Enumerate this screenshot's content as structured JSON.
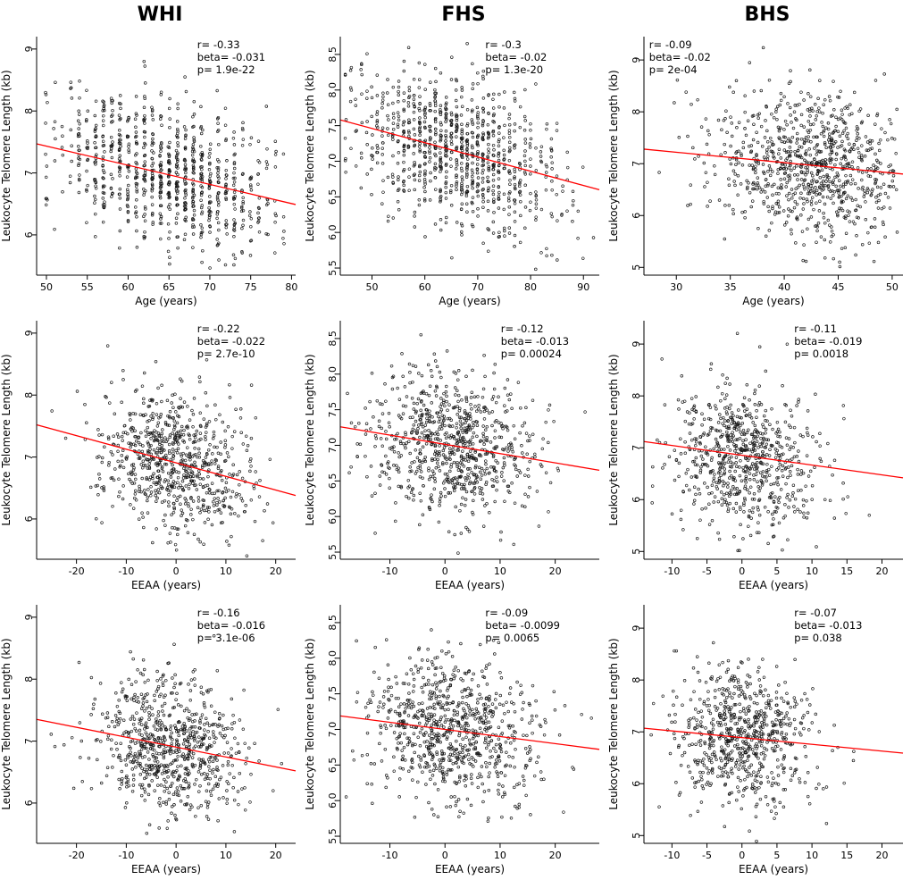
{
  "chart_data": {
    "type": "scatter",
    "columns": [
      "WHI",
      "FHS",
      "BHS"
    ],
    "ylabel": "Leukocyte Telomere Length (kb)",
    "panels": [
      {
        "study": "WHI",
        "xlabel": "Age (years)",
        "xlim": [
          48.8,
          80.5
        ],
        "ylim": [
          5.35,
          9.2
        ],
        "xticks": {
          "vals": [
            50,
            55,
            60,
            65,
            70,
            75,
            80
          ],
          "labels": [
            "50",
            "55",
            "60",
            "65",
            "70",
            "75",
            "80"
          ]
        },
        "yticks": {
          "vals": [
            6,
            7,
            8,
            9
          ],
          "labels": [
            "6",
            "7",
            "8",
            "9"
          ]
        },
        "annotation": {
          "lines": [
            "r= -0.33",
            "beta= -0.031",
            "p= 1.9e-22"
          ],
          "x_frac": 0.62
        },
        "line": {
          "x1": 48.8,
          "y1": 7.47,
          "x2": 80.5,
          "y2": 6.49
        },
        "scatter": {
          "n": 850,
          "seed": 11,
          "x_mean": 64.5,
          "x_sd": 7.2,
          "x_clip": [
            49.5,
            79.5
          ],
          "snap_x": true,
          "y_sd": 0.55
        }
      },
      {
        "study": "FHS",
        "xlabel": "Age (years)",
        "xlim": [
          44,
          93
        ],
        "ylim": [
          5.4,
          8.75
        ],
        "xticks": {
          "vals": [
            50,
            60,
            70,
            80,
            90
          ],
          "labels": [
            "50",
            "60",
            "70",
            "80",
            "90"
          ]
        },
        "yticks": {
          "vals": [
            5.5,
            6.0,
            6.5,
            7.0,
            7.5,
            8.0,
            8.5
          ],
          "labels": [
            "5.5",
            "6.0",
            "6.5",
            "7.0",
            "7.5",
            "8.0",
            "8.5"
          ]
        },
        "annotation": {
          "lines": [
            "r= -0.3",
            "beta= -0.02",
            "p= 1.3e-20"
          ],
          "x_frac": 0.56
        },
        "line": {
          "x1": 44,
          "y1": 7.58,
          "x2": 93,
          "y2": 6.6
        },
        "scatter": {
          "n": 900,
          "seed": 22,
          "x_mean": 66,
          "x_sd": 10,
          "x_clip": [
            45,
            92
          ],
          "snap_x": true,
          "y_sd": 0.5
        }
      },
      {
        "study": "BHS",
        "xlabel": "Age (years)",
        "xlim": [
          27,
          51
        ],
        "ylim": [
          4.85,
          9.45
        ],
        "xticks": {
          "vals": [
            30,
            35,
            40,
            45,
            50
          ],
          "labels": [
            "30",
            "35",
            "40",
            "45",
            "50"
          ]
        },
        "yticks": {
          "vals": [
            5,
            6,
            7,
            8,
            9
          ],
          "labels": [
            "5",
            "6",
            "7",
            "8",
            "9"
          ]
        },
        "annotation": {
          "lines": [
            "r= -0.09",
            "beta= -0.02",
            "p= 2e-04"
          ],
          "x_frac": 0.02
        },
        "line": {
          "x1": 27,
          "y1": 7.28,
          "x2": 51,
          "y2": 6.8
        },
        "scatter": {
          "n": 850,
          "seed": 33,
          "x_mean": 42.5,
          "x_sd": 4.6,
          "x_clip": [
            28,
            50.5
          ],
          "snap_x": false,
          "y_sd": 0.68
        }
      },
      {
        "study": "WHI",
        "xlabel": "EEAA (years)",
        "xlim": [
          -28,
          24
        ],
        "ylim": [
          5.35,
          9.2
        ],
        "xticks": {
          "vals": [
            -20,
            -10,
            0,
            10,
            20
          ],
          "labels": [
            "-20",
            "-10",
            "0",
            "10",
            "20"
          ]
        },
        "yticks": {
          "vals": [
            6,
            7,
            8,
            9
          ],
          "labels": [
            "6",
            "7",
            "8",
            "9"
          ]
        },
        "annotation": {
          "lines": [
            "r= -0.22",
            "beta= -0.022",
            "p= 2.7e-10"
          ],
          "x_frac": 0.62
        },
        "line": {
          "x1": -28,
          "y1": 7.52,
          "x2": 24,
          "y2": 6.38
        },
        "scatter": {
          "n": 750,
          "seed": 44,
          "x_mean": -1,
          "x_sd": 7.5,
          "x_clip": [
            -27,
            23
          ],
          "snap_x": false,
          "y_sd": 0.55
        }
      },
      {
        "study": "FHS",
        "xlabel": "EEAA (years)",
        "xlim": [
          -19,
          28
        ],
        "ylim": [
          5.4,
          8.75
        ],
        "xticks": {
          "vals": [
            -10,
            0,
            10,
            20
          ],
          "labels": [
            "-10",
            "0",
            "10",
            "20"
          ]
        },
        "yticks": {
          "vals": [
            5.5,
            6.0,
            6.5,
            7.0,
            7.5,
            8.0,
            8.5
          ],
          "labels": [
            "5.5",
            "6.0",
            "6.5",
            "7.0",
            "7.5",
            "8.0",
            "8.5"
          ]
        },
        "annotation": {
          "lines": [
            "r= -0.12",
            "beta= -0.013",
            "p= 0.00024"
          ],
          "x_frac": 0.62
        },
        "line": {
          "x1": -19,
          "y1": 7.26,
          "x2": 28,
          "y2": 6.65
        },
        "scatter": {
          "n": 800,
          "seed": 55,
          "x_mean": 1,
          "x_sd": 7.5,
          "x_clip": [
            -18,
            27
          ],
          "snap_x": false,
          "y_sd": 0.5
        }
      },
      {
        "study": "BHS",
        "xlabel": "EEAA (years)",
        "xlim": [
          -14,
          23
        ],
        "ylim": [
          4.85,
          9.45
        ],
        "xticks": {
          "vals": [
            -10,
            -5,
            0,
            5,
            10,
            15,
            20
          ],
          "labels": [
            "-10",
            "-5",
            "0",
            "5",
            "10",
            "15",
            "20"
          ]
        },
        "yticks": {
          "vals": [
            5,
            6,
            7,
            8,
            9
          ],
          "labels": [
            "5",
            "6",
            "7",
            "8",
            "9"
          ]
        },
        "annotation": {
          "lines": [
            "r= -0.11",
            "beta= -0.019",
            "p= 0.0018"
          ],
          "x_frac": 0.58
        },
        "line": {
          "x1": -14,
          "y1": 7.12,
          "x2": 23,
          "y2": 6.42
        },
        "scatter": {
          "n": 700,
          "seed": 66,
          "x_mean": 0,
          "x_sd": 5,
          "x_clip": [
            -13,
            22
          ],
          "snap_x": false,
          "y_sd": 0.68
        }
      },
      {
        "study": "WHI",
        "xlabel": "EEAA (years)",
        "xlim": [
          -28,
          24
        ],
        "ylim": [
          5.35,
          9.2
        ],
        "xticks": {
          "vals": [
            -20,
            -10,
            0,
            10,
            20
          ],
          "labels": [
            "-20",
            "-10",
            "0",
            "10",
            "20"
          ]
        },
        "yticks": {
          "vals": [
            6,
            7,
            8,
            9
          ],
          "labels": [
            "6",
            "7",
            "8",
            "9"
          ]
        },
        "annotation": {
          "lines": [
            "r= -0.16",
            "beta= -0.016",
            "p= 3.1e-06"
          ],
          "x_frac": 0.62
        },
        "line": {
          "x1": -28,
          "y1": 7.35,
          "x2": 24,
          "y2": 6.52
        },
        "scatter": {
          "n": 750,
          "seed": 77,
          "x_mean": -1,
          "x_sd": 7.5,
          "x_clip": [
            -27,
            23
          ],
          "snap_x": false,
          "y_sd": 0.55
        }
      },
      {
        "study": "FHS",
        "xlabel": "EEAA (years)",
        "xlim": [
          -19,
          28
        ],
        "ylim": [
          5.4,
          8.75
        ],
        "xticks": {
          "vals": [
            -10,
            0,
            10,
            20
          ],
          "labels": [
            "-10",
            "0",
            "10",
            "20"
          ]
        },
        "yticks": {
          "vals": [
            5.5,
            6.0,
            6.5,
            7.0,
            7.5,
            8.0,
            8.5
          ],
          "labels": [
            "5.5",
            "6.0",
            "6.5",
            "7.0",
            "7.5",
            "8.0",
            "8.5"
          ]
        },
        "annotation": {
          "lines": [
            "r= -0.09",
            "beta= -0.0099",
            "p= 0.0065"
          ],
          "x_frac": 0.56
        },
        "line": {
          "x1": -19,
          "y1": 7.19,
          "x2": 28,
          "y2": 6.72
        },
        "scatter": {
          "n": 800,
          "seed": 88,
          "x_mean": 1,
          "x_sd": 7.5,
          "x_clip": [
            -18,
            27
          ],
          "snap_x": false,
          "y_sd": 0.5
        }
      },
      {
        "study": "BHS",
        "xlabel": "EEAA (years)",
        "xlim": [
          -14,
          23
        ],
        "ylim": [
          4.85,
          9.45
        ],
        "xticks": {
          "vals": [
            -10,
            -5,
            0,
            5,
            10,
            15,
            20
          ],
          "labels": [
            "-10",
            "-5",
            "0",
            "5",
            "10",
            "15",
            "20"
          ]
        },
        "yticks": {
          "vals": [
            5,
            6,
            7,
            8,
            9
          ],
          "labels": [
            "5",
            "6",
            "7",
            "8",
            "9"
          ]
        },
        "annotation": {
          "lines": [
            "r= -0.07",
            "beta= -0.013",
            "p= 0.038"
          ],
          "x_frac": 0.58
        },
        "line": {
          "x1": -14,
          "y1": 7.07,
          "x2": 23,
          "y2": 6.59
        },
        "scatter": {
          "n": 700,
          "seed": 99,
          "x_mean": 0,
          "x_sd": 5,
          "x_clip": [
            -13,
            22
          ],
          "snap_x": false,
          "y_sd": 0.68
        }
      }
    ],
    "style": {
      "line_color": "#ff0000",
      "point_color": "#1a1a1a"
    }
  }
}
